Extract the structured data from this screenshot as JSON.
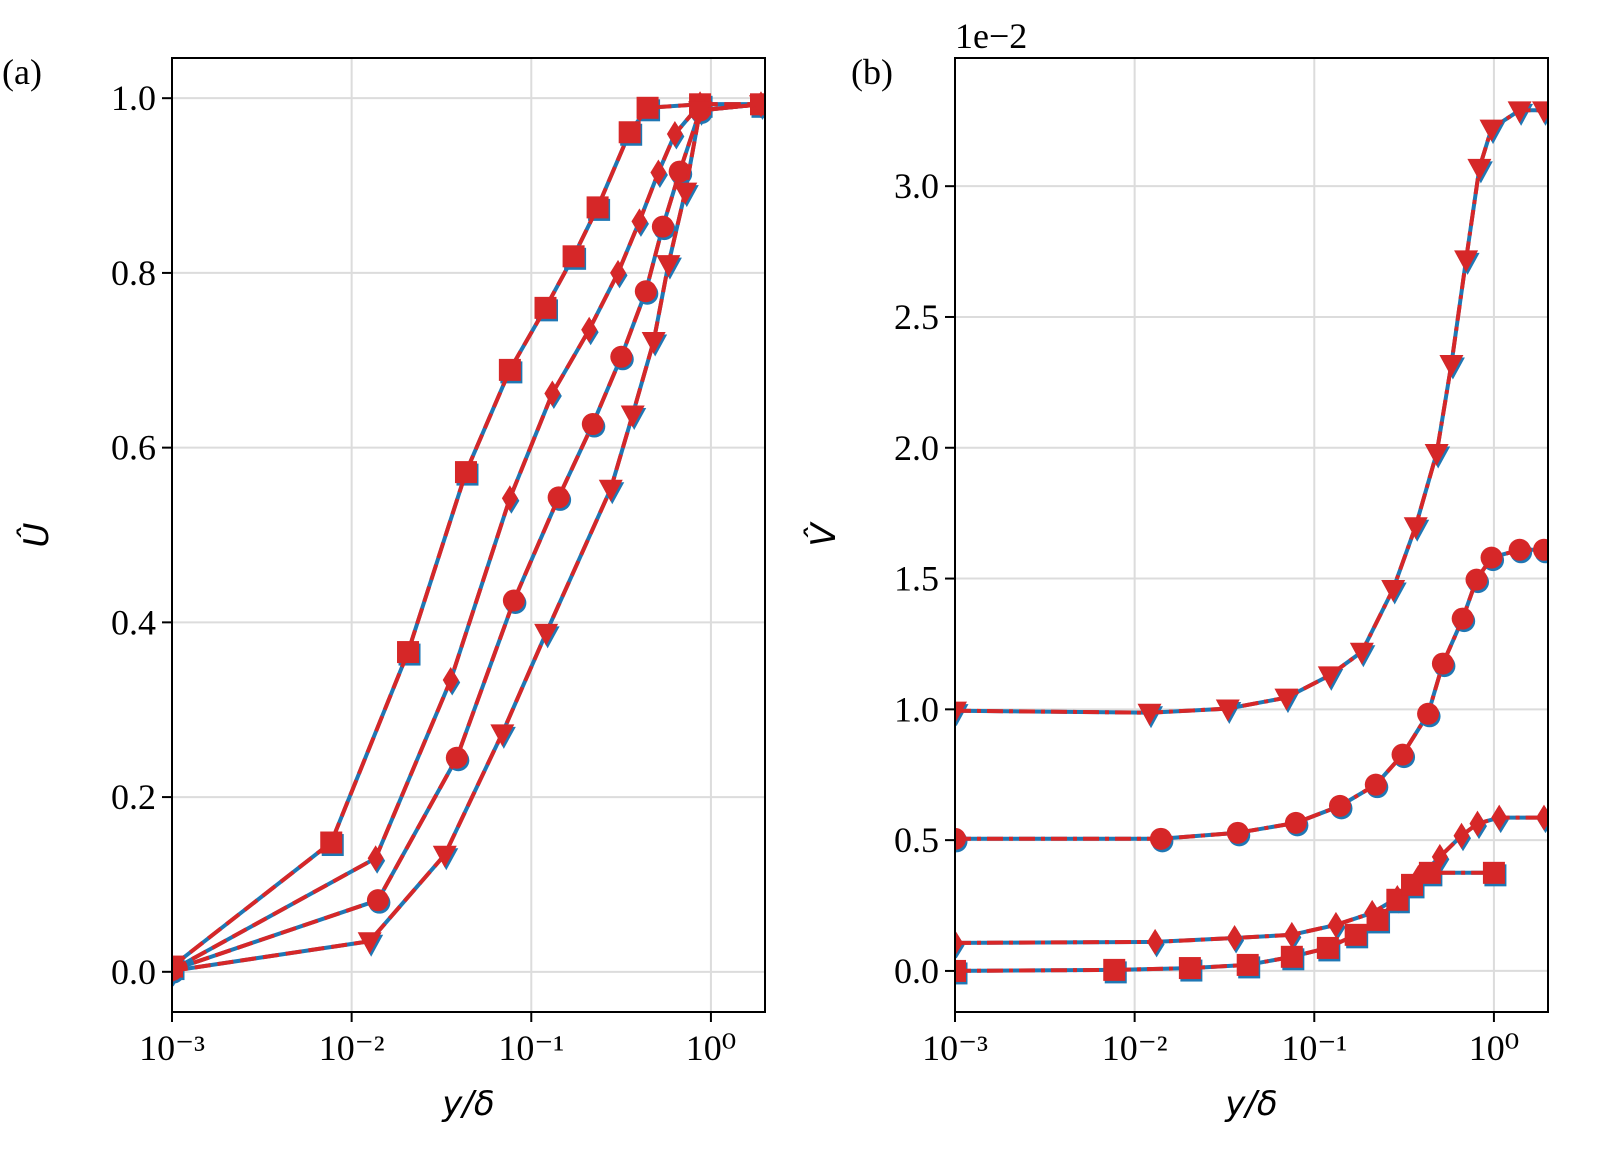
{
  "chart_data": [
    {
      "type": "line",
      "panel_label": "(a)",
      "x_label": "y/δ",
      "y_label": "Û",
      "xscale": "log",
      "xlim": [
        0.001,
        2
      ],
      "ylim": [
        -0.046,
        1.046
      ],
      "grid": true,
      "xticks": [
        {
          "value": 0.001,
          "label": "10⁻³"
        },
        {
          "value": 0.01,
          "label": "10⁻²"
        },
        {
          "value": 0.1,
          "label": "10⁻¹"
        },
        {
          "value": 1,
          "label": "10⁰"
        }
      ],
      "yticks": [
        {
          "value": 0,
          "label": "0.0"
        },
        0.2,
        0.4,
        0.6,
        0.8,
        {
          "value": 1,
          "label": "1.0"
        }
      ],
      "linestyle": "dashed",
      "series": [
        {
          "marker": "square",
          "color": "#d62728",
          "underlay_color": "#1f77b4",
          "x": [
            0.001,
            0.0077,
            0.0206,
            0.0433,
            0.076,
            0.12,
            0.172,
            0.234,
            0.353,
            0.444,
            0.87,
            1.9
          ],
          "values": [
            0.006,
            0.148,
            0.366,
            0.572,
            0.689,
            0.76,
            0.819,
            0.875,
            0.961,
            0.989,
            0.993,
            0.993
          ]
        },
        {
          "marker": "diamond",
          "color": "#d62728",
          "underlay_color": "#1f77b4",
          "x": [
            0.001,
            0.0136,
            0.0356,
            0.076,
            0.131,
            0.21,
            0.304,
            0.4,
            0.51,
            0.63,
            0.87,
            1.9
          ],
          "values": [
            0.002,
            0.13,
            0.334,
            0.542,
            0.662,
            0.735,
            0.8,
            0.859,
            0.915,
            0.959,
            0.993,
            0.993
          ]
        },
        {
          "marker": "circle",
          "color": "#d62728",
          "underlay_color": "#1f77b4",
          "x": [
            0.001,
            0.014,
            0.0385,
            0.08,
            0.142,
            0.22,
            0.317,
            0.434,
            0.54,
            0.67,
            0.87,
            1.9
          ],
          "values": [
            0.002,
            0.082,
            0.245,
            0.425,
            0.543,
            0.627,
            0.704,
            0.779,
            0.853,
            0.916,
            0.986,
            0.993
          ]
        },
        {
          "marker": "triangle-down",
          "color": "#d62728",
          "underlay_color": "#1f77b4",
          "x": [
            0.001,
            0.0126,
            0.033,
            0.069,
            0.121,
            0.277,
            0.367,
            0.48,
            0.58,
            0.72,
            0.87,
            1.9
          ],
          "values": [
            0.001,
            0.035,
            0.134,
            0.273,
            0.388,
            0.553,
            0.638,
            0.722,
            0.81,
            0.893,
            0.986,
            0.993
          ]
        }
      ]
    },
    {
      "type": "line",
      "panel_label": "(b)",
      "x_label": "y/δ",
      "y_label": "V̂",
      "offset_text": "1e−2",
      "xscale": "log",
      "xlim": [
        0.001,
        2
      ],
      "ylim": [
        -0.157,
        3.49
      ],
      "grid": true,
      "xticks": [
        {
          "value": 0.001,
          "label": "10⁻³"
        },
        {
          "value": 0.01,
          "label": "10⁻²"
        },
        {
          "value": 0.1,
          "label": "10⁻¹"
        },
        {
          "value": 1,
          "label": "10⁰"
        }
      ],
      "yticks": [
        {
          "value": 0,
          "label": "0.0"
        },
        0.5,
        {
          "value": 1,
          "label": "1.0"
        },
        1.5,
        {
          "value": 2,
          "label": "2.0"
        },
        2.5,
        {
          "value": 3,
          "label": "3.0"
        }
      ],
      "linestyle": "dashdot",
      "series": [
        {
          "marker": "triangle-down",
          "color": "#d62728",
          "underlay_color": "#1f77b4",
          "x": [
            0.001,
            0.0121,
            0.033,
            0.07,
            0.122,
            0.184,
            0.275,
            0.367,
            0.48,
            0.58,
            0.7,
            0.83,
            0.97,
            1.39,
            1.9
          ],
          "values": [
            0.995,
            0.987,
            1.003,
            1.045,
            1.13,
            1.22,
            1.46,
            1.7,
            1.98,
            2.32,
            2.72,
            3.07,
            3.22,
            3.29,
            3.29
          ]
        },
        {
          "marker": "circle",
          "color": "#d62728",
          "underlay_color": "#1f77b4",
          "x": [
            0.001,
            0.014,
            0.0375,
            0.079,
            0.139,
            0.22,
            0.31,
            0.43,
            0.52,
            0.67,
            0.8,
            0.97,
            1.39,
            1.9
          ],
          "values": [
            0.505,
            0.505,
            0.528,
            0.566,
            0.631,
            0.712,
            0.827,
            0.983,
            1.175,
            1.347,
            1.496,
            1.58,
            1.61,
            1.61
          ]
        },
        {
          "marker": "diamond",
          "color": "#d62728",
          "underlay_color": "#1f77b4",
          "x": [
            0.001,
            0.013,
            0.036,
            0.075,
            0.132,
            0.21,
            0.29,
            0.38,
            0.5,
            0.66,
            0.81,
            1.07,
            1.9
          ],
          "values": [
            0.107,
            0.111,
            0.126,
            0.138,
            0.176,
            0.222,
            0.279,
            0.356,
            0.436,
            0.517,
            0.563,
            0.586,
            0.586
          ]
        },
        {
          "marker": "square",
          "color": "#d62728",
          "underlay_color": "#1f77b4",
          "x": [
            0.001,
            0.0077,
            0.0203,
            0.0426,
            0.075,
            0.119,
            0.17,
            0.225,
            0.29,
            0.35,
            0.44,
            1.0
          ],
          "values": [
            0.0,
            0.004,
            0.011,
            0.023,
            0.054,
            0.088,
            0.138,
            0.195,
            0.272,
            0.329,
            0.375,
            0.375
          ]
        }
      ]
    }
  ]
}
